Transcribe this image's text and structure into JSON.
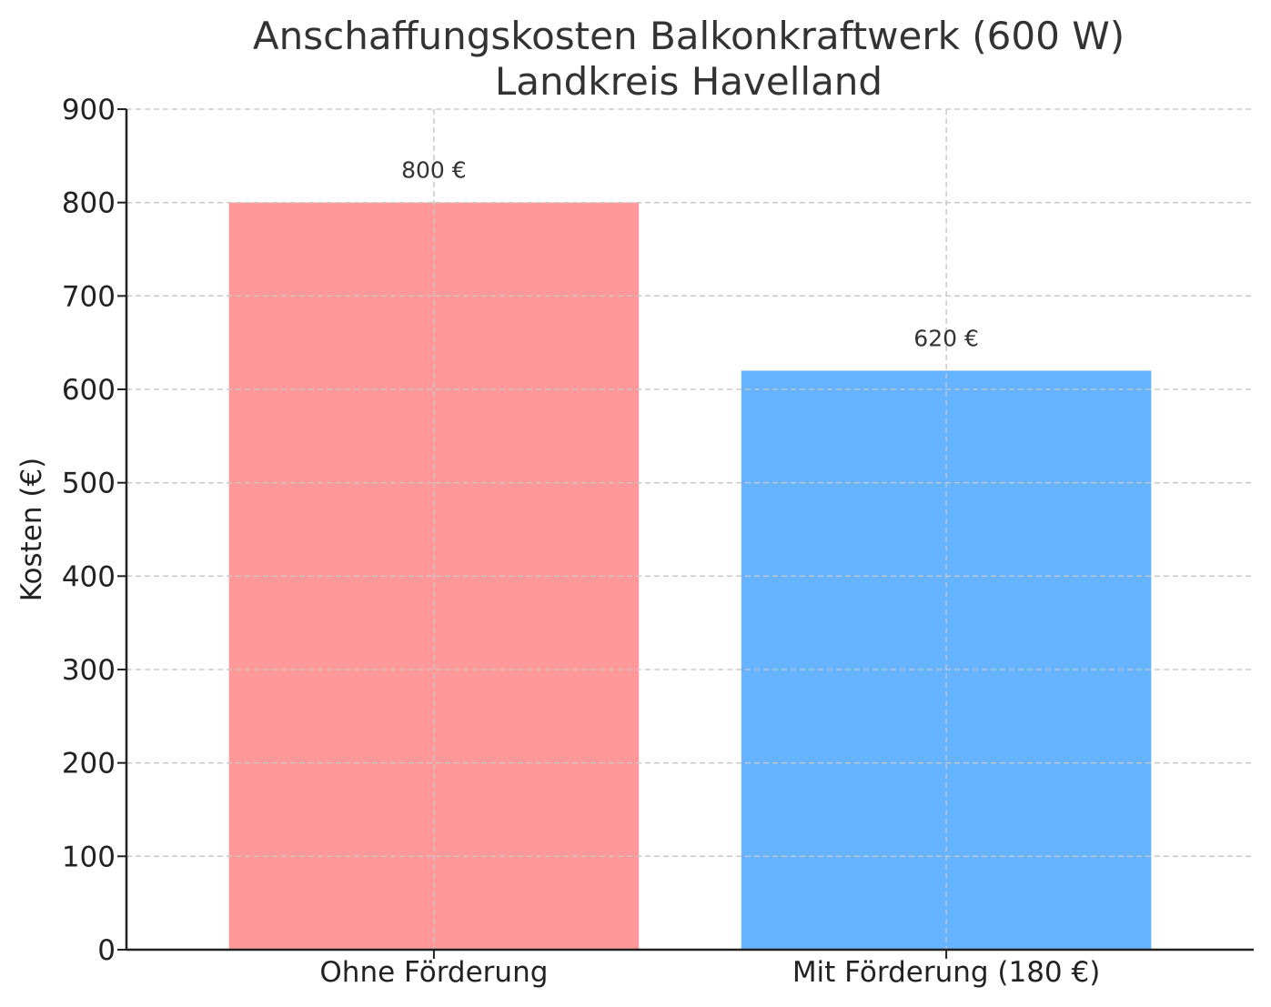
{
  "chart_data": {
    "type": "bar",
    "title": [
      "Anschaffungskosten Balkonkraftwerk (600 W)",
      "Landkreis Havelland"
    ],
    "xlabel": "",
    "ylabel": "Kosten (€)",
    "ylim": [
      0,
      900
    ],
    "yticks": [
      0,
      100,
      200,
      300,
      400,
      500,
      600,
      700,
      800,
      900
    ],
    "categories": [
      "Ohne Förderung",
      "Mit Förderung (180 €)"
    ],
    "values": [
      800,
      620
    ],
    "data_labels": [
      "800 €",
      "620 €"
    ],
    "colors": [
      "#ff9999",
      "#66b3ff"
    ],
    "grid": true
  }
}
